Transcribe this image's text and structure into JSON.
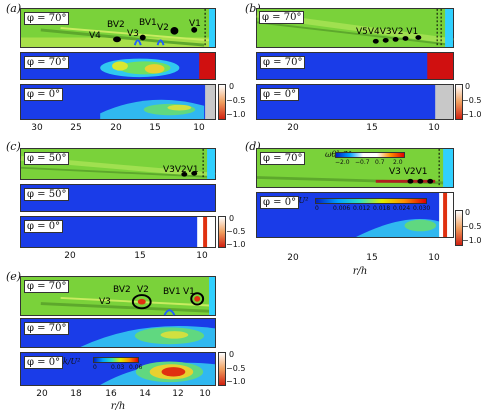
{
  "panels": {
    "a": {
      "label": "(a)",
      "row1_badge": "φ = 70°",
      "row2_badge": "φ = 70°",
      "row3_badge": "φ = 0°",
      "vortices": [
        "V4",
        "BV2",
        "V3",
        "BV1",
        "V2",
        "V1"
      ],
      "colorbar_ticks": [
        "0",
        "−0.5",
        "−1.0"
      ],
      "x_ticks": [
        "30",
        "25",
        "20",
        "15",
        "10"
      ]
    },
    "b": {
      "label": "(b)",
      "row1_badge": "φ = 70°",
      "row2_badge": "φ = 70°",
      "row3_badge": "φ = 0°",
      "vortices": [
        "V5V4V3V2 V1"
      ],
      "colorbar_ticks": [
        "0",
        "−0.5",
        "−1.0"
      ],
      "x_ticks": [
        "20",
        "15",
        "10"
      ]
    },
    "c": {
      "label": "(c)",
      "row1_badge": "φ = 50°",
      "row2_badge": "φ = 50°",
      "row3_badge": "φ = 0°",
      "vortices": [
        "V3V2V1"
      ],
      "colorbar_ticks": [
        "0",
        "−0.5",
        "−1.0"
      ],
      "x_ticks": [
        "20",
        "15",
        "10"
      ]
    },
    "d": {
      "label": "(d)",
      "row1_badge": "φ = 70°",
      "row1_legend_title": "ωθh/U",
      "row1_legend_ticks": [
        "−2.0",
        "−0.7",
        "0.7",
        "2.0"
      ],
      "row2_badge": "φ = 0°",
      "row2_legend_title": "k/U²",
      "row2_legend_ticks": [
        "0",
        "0.006",
        "0.012",
        "0.018",
        "0.024",
        "0.030"
      ],
      "vortices": [
        "V3 V2V1"
      ],
      "colorbar_ticks": [
        "0",
        "−0.5",
        "−1.0"
      ],
      "x_ticks": [
        "20",
        "15",
        "10"
      ],
      "x_label": "r/h"
    },
    "e": {
      "label": "(e)",
      "row1_badge": "φ = 70°",
      "row2_badge": "φ = 70°",
      "row3_badge": "φ = 0°",
      "row3_legend_title": "k/U²",
      "row3_legend_ticks": [
        "0",
        "0.03",
        "0.06"
      ],
      "vortices": [
        "BV2",
        "V2",
        "BV1",
        "V1",
        "V3"
      ],
      "colorbar_ticks": [
        "0",
        "−0.5",
        "−1.0"
      ],
      "x_ticks": [
        "20",
        "18",
        "16",
        "14",
        "12",
        "10"
      ],
      "x_label": "r/h"
    }
  }
}
